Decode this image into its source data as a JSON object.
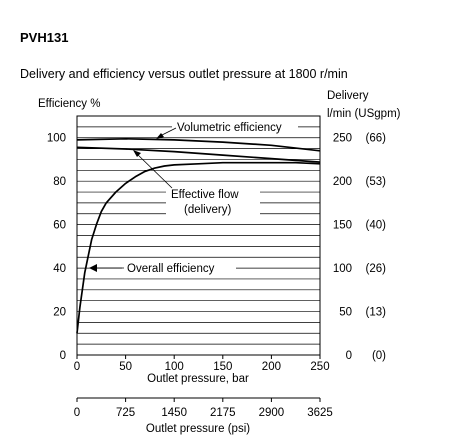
{
  "header": {
    "model": "PVH131",
    "subtitle": "Delivery and efficiency versus outlet pressure at 1800 r/min"
  },
  "chart_data": {
    "type": "line",
    "title": "Delivery and efficiency versus outlet pressure at 1800 r/min",
    "ylabel_left": "Efficiency %",
    "ylabel_right_line1": "Delivery",
    "ylabel_right_line2": "l/min  (USgpm)",
    "xlabel_bar": "Outlet pressure, bar",
    "xlabel_psi": "Outlet pressure (psi)",
    "xlim": [
      0,
      250
    ],
    "ylim_left": [
      0,
      110
    ],
    "ylim_right": [
      0,
      275
    ],
    "grid": {
      "horizontal": true,
      "vertical": false
    },
    "x_ticks": [
      "0",
      "50",
      "100",
      "150",
      "200",
      "250"
    ],
    "psi_ticks": [
      "0",
      "725",
      "1450",
      "2175",
      "2900",
      "3625"
    ],
    "y_left_ticks": [
      "0",
      "20",
      "40",
      "60",
      "80",
      "100"
    ],
    "y_right_ticks": [
      {
        "lmin": "0",
        "gpm": "(0)"
      },
      {
        "lmin": "50",
        "gpm": "(13)"
      },
      {
        "lmin": "100",
        "gpm": "(26)"
      },
      {
        "lmin": "150",
        "gpm": "(40)"
      },
      {
        "lmin": "200",
        "gpm": "(53)"
      },
      {
        "lmin": "250",
        "gpm": "(66)"
      }
    ],
    "annotations": {
      "volumetric": "Volumetric efficiency",
      "flow_line1": "Effective flow",
      "flow_line2": "(delivery)",
      "overall": "Overall efficiency"
    },
    "series": [
      {
        "axis": "left",
        "x": [
          0,
          50,
          100,
          150,
          200,
          250
        ],
        "y": [
          99,
          99.5,
          99,
          98,
          96.5,
          94
        ]
      },
      {
        "axis": "right",
        "x": [
          0,
          50,
          100,
          150,
          200,
          250
        ],
        "y": [
          239,
          237,
          234,
          230,
          226,
          222
        ]
      },
      {
        "axis": "left",
        "x": [
          0,
          3,
          8,
          15,
          20,
          25,
          30,
          40,
          50,
          60,
          70,
          80,
          90,
          100,
          125,
          150,
          175,
          200,
          225,
          250
        ],
        "y": [
          10,
          22,
          38,
          53,
          60,
          66,
          70,
          75,
          79,
          82,
          84.5,
          86,
          87,
          87.5,
          88,
          88.5,
          88.5,
          88.5,
          88.5,
          88
        ]
      }
    ]
  }
}
